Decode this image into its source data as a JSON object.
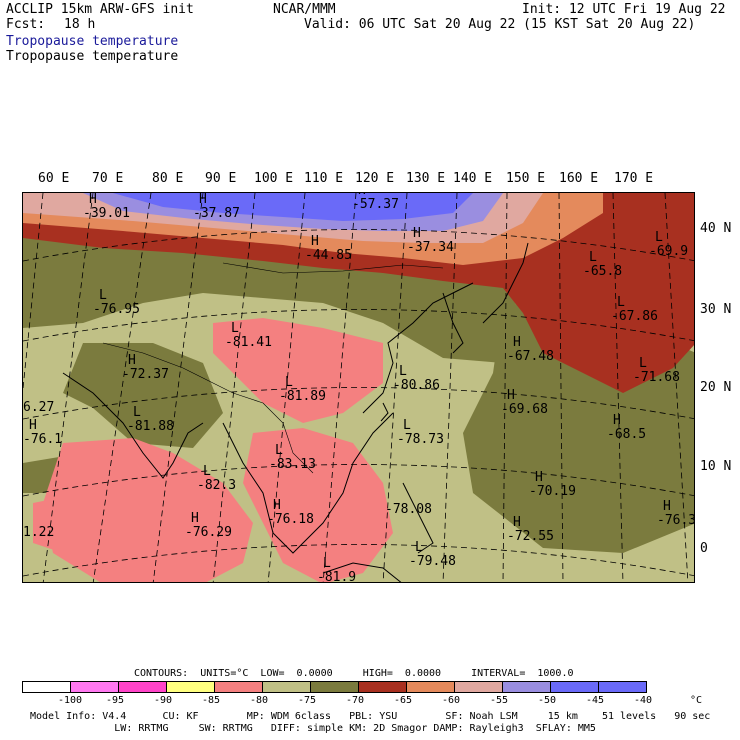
{
  "header": {
    "title": "ACCLIP 15km ARW-GFS init",
    "org": "NCAR/MMM",
    "init": "Init: 12 UTC Fri 19 Aug 22",
    "fcst_label": "Fcst:",
    "fcst_value": "18 h",
    "valid": "Valid: 06 UTC Sat 20 Aug 22 (15 KST Sat 20 Aug 22)",
    "field_blue": "Tropopause temperature",
    "field_black": "Tropopause temperature"
  },
  "map": {
    "lon_labels": [
      "60 E",
      "70 E",
      "80 E",
      "90 E",
      "100 E",
      "110 E",
      "120 E",
      "130 E",
      "140 E",
      "150 E",
      "160 E",
      "170 E"
    ],
    "lat_labels": [
      "40 N",
      "30 N",
      "20 N",
      "10 N",
      "0"
    ],
    "colors": {
      "cold_pink": "#f48080",
      "tan": "#c0c086",
      "olive": "#7b7b3e",
      "red_brown": "#a83020",
      "orange": "#e48a5c",
      "light_pink": "#e0a8a0",
      "lavender": "#9a8ee0",
      "blue": "#6a6af8",
      "border": "#000000",
      "grid": "#000000"
    },
    "highs": [
      {
        "value": "-39.01"
      },
      {
        "value": "-37.87"
      },
      {
        "value": "-57.37"
      },
      {
        "value": "-44.85"
      },
      {
        "value": "-37.34"
      },
      {
        "value": "-72.37"
      },
      {
        "value": "-67.48"
      },
      {
        "value": "-69.68"
      },
      {
        "value": "-68.5"
      },
      {
        "value": "-76.1"
      },
      {
        "value": "-76.29"
      },
      {
        "value": "-76.18"
      },
      {
        "value": "-70.19"
      },
      {
        "value": "-72.55"
      },
      {
        "value": "-76.3"
      }
    ],
    "lows": [
      {
        "value": "-76.95"
      },
      {
        "value": "-81.41"
      },
      {
        "value": "-81.89"
      },
      {
        "value": "-80.86"
      },
      {
        "value": "-81.88"
      },
      {
        "value": "-78.73"
      },
      {
        "value": "-83.13"
      },
      {
        "value": "-82.3"
      },
      {
        "value": "-79.48"
      },
      {
        "value": "-81.9"
      },
      {
        "value": "-69.9"
      },
      {
        "value": "-65.8"
      },
      {
        "value": "-67.86"
      },
      {
        "value": "-71.68"
      }
    ],
    "edge_values": [
      "6.27",
      "1.22",
      "-78.08"
    ]
  },
  "footer": {
    "contours": "CONTOURS:  UNITS=°C  LOW=  0.0000     HIGH=  0.0000     INTERVAL=  1000.0",
    "legend_ticks": [
      "-100",
      "-95",
      "-90",
      "-85",
      "-80",
      "-75",
      "-70",
      "-65",
      "-60",
      "-55",
      "-50",
      "-45",
      "-40"
    ],
    "legend_unit": "°C",
    "legend_colors": [
      "#ffffff",
      "#ff78f0",
      "#ff44c8",
      "#ffff80",
      "#f48080",
      "#c0c086",
      "#7b7b3e",
      "#a83020",
      "#e48a5c",
      "#e0a8a0",
      "#9a8ee0",
      "#6a6af8",
      "#6a6af8"
    ],
    "info_line1": "Model Info: V4.4      CU: KF        MP: WDM 6class   PBL: YSU        SF: Noah LSM     15 km    51 levels   90 sec",
    "info_line2": "              LW: RRTMG     SW: RRTMG   DIFF: simple KM: 2D Smagor DAMP: Rayleigh3  SFLAY: MM5"
  }
}
